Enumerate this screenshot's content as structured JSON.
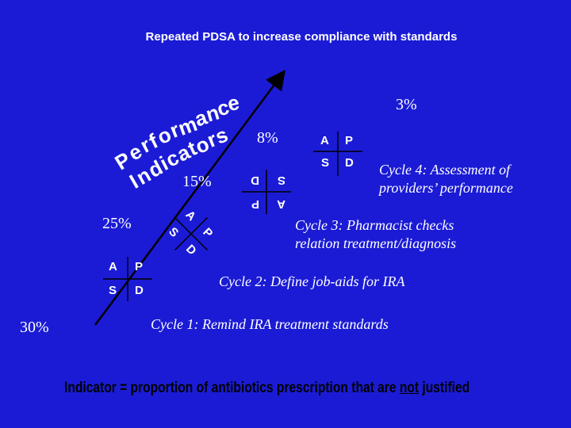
{
  "title": "Repeated PDSA to increase compliance with standards",
  "curve_label": {
    "line1": "Performance",
    "line2": "Indicators"
  },
  "pdsa": {
    "a": "A",
    "p": "P",
    "s": "S",
    "d": "D"
  },
  "percentages": {
    "cycle1": "30%",
    "cycle2": "25%",
    "cycle3": "15%",
    "cycle4": "8%",
    "final": "3%"
  },
  "cycles": {
    "cycle1": "Cycle 1: Remind IRA treatment standards",
    "cycle2": "Cycle 2: Define job-aids for IRA",
    "cycle3_line1": "Cycle 3: Pharmacist checks",
    "cycle3_line2": "relation treatment/diagnosis",
    "cycle4_line1": "Cycle 4: Assessment of",
    "cycle4_line2": "providers’ performance"
  },
  "indicator": {
    "prefix": "Indicator = proportion of antibiotics prescription that are ",
    "emphasis": "not",
    "suffix": " justified"
  },
  "colors": {
    "background": "#1b1bd6",
    "foreground": "#ffffff",
    "indicator_text": "#000000"
  }
}
